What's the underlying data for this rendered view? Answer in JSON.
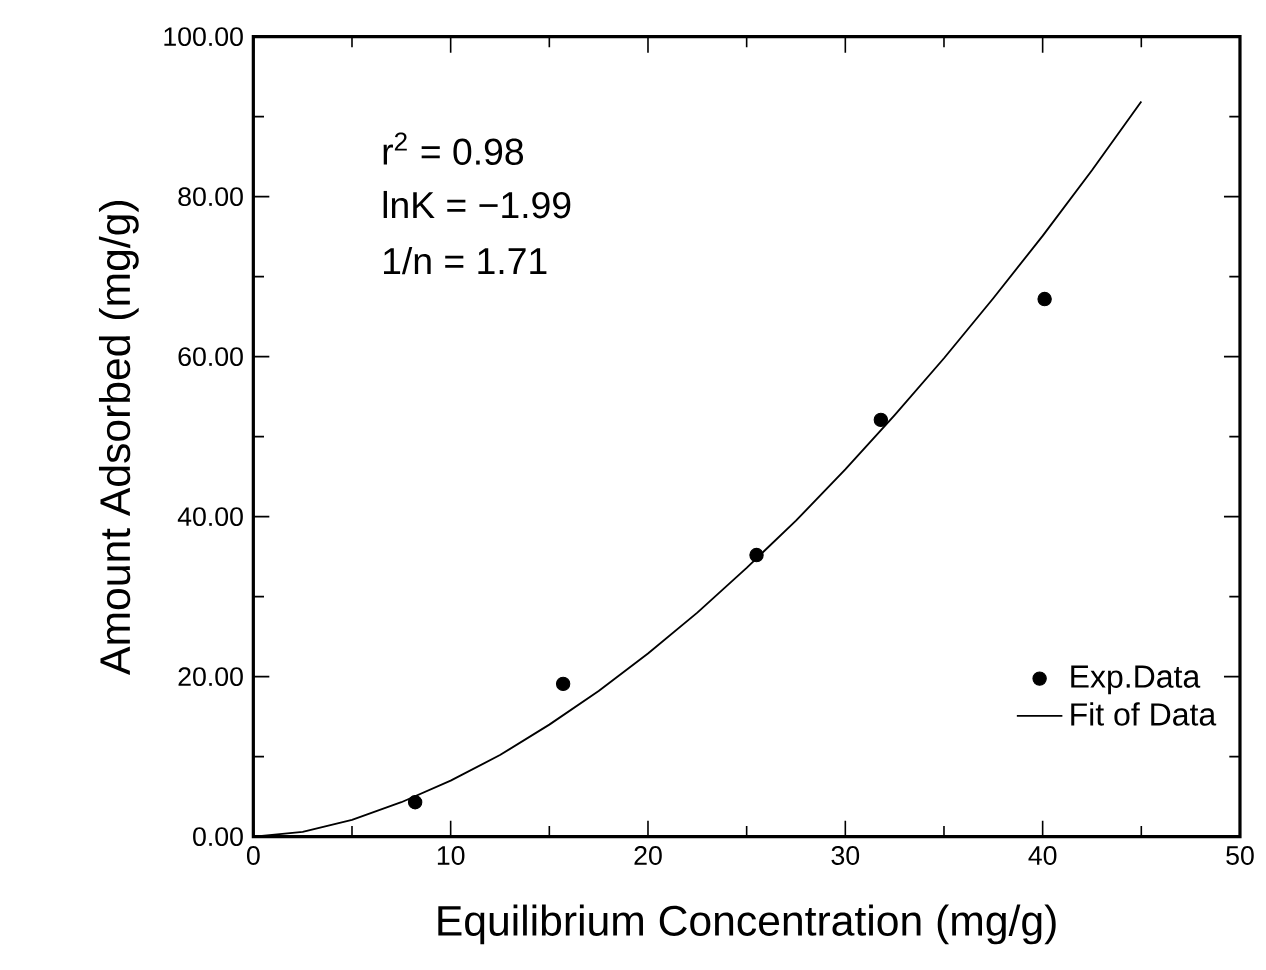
{
  "chart_data": {
    "type": "scatter",
    "xlabel": "Equilibrium Concentration (mg/g)",
    "ylabel": "Amount Adsorbed (mg/g)",
    "xlim": [
      0,
      50
    ],
    "ylim": [
      0,
      100
    ],
    "xticks": [
      0,
      10,
      20,
      30,
      40,
      50
    ],
    "yticks": [
      {
        "value": 0,
        "label": "0.00"
      },
      {
        "value": 20,
        "label": "20.00"
      },
      {
        "value": 40,
        "label": "40.00"
      },
      {
        "value": 60,
        "label": "60.00"
      },
      {
        "value": 80,
        "label": "80.00"
      },
      {
        "value": 100,
        "label": "100.00"
      }
    ],
    "grid": false,
    "legend": "bottom right",
    "annotations": [
      "r$^{2}$ = 0.98",
      "lnK = −1.99",
      "1/n = 1.71"
    ],
    "series": [
      {
        "name": "Exp.Data",
        "marker": "circle",
        "color": "#000000",
        "x": [
          8.2,
          15.7,
          25.5,
          31.8,
          40.1
        ],
        "values": [
          4.3,
          19.1,
          35.2,
          52.1,
          67.2
        ]
      },
      {
        "name": "Fit of Data",
        "type": "line",
        "marker": "none",
        "line_style": "solid",
        "color": "#000000",
        "x": [
          0,
          2.5,
          5,
          7.5,
          10,
          12.5,
          15,
          17.5,
          20,
          22.5,
          25,
          27.5,
          30,
          32.5,
          35,
          37.5,
          40,
          42.5,
          45
        ],
        "values": [
          0,
          0.6,
          2.1,
          4.3,
          7.0,
          10.2,
          14.0,
          18.2,
          22.9,
          28.0,
          33.6,
          39.5,
          45.9,
          52.7,
          59.8,
          67.3,
          75.1,
          83.3,
          91.9
        ]
      }
    ]
  }
}
